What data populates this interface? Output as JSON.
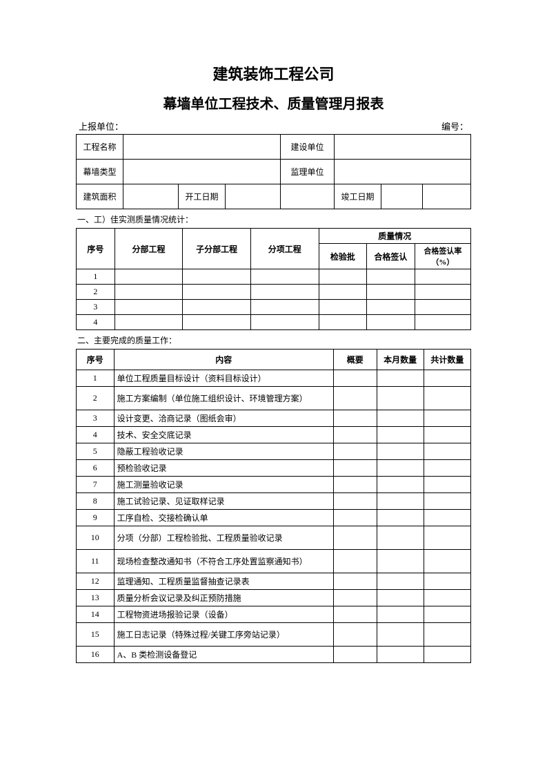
{
  "title_main": "建筑装饰工程公司",
  "title_sub": "幕墙单位工程技术、质量管理月报表",
  "header": {
    "left": "上报单位：",
    "right": "编号："
  },
  "info": {
    "project_name_label": "工程名称",
    "construction_unit_label": "建设单位",
    "curtain_type_label": "幕墙类型",
    "supervision_unit_label": "监理单位",
    "building_area_label": "建筑面积",
    "start_date_label": "开工日期",
    "end_date_label": "竣工日期"
  },
  "section1": {
    "label": "一、工）佳实测质量情况统计：",
    "headers": {
      "seq": "序号",
      "division": "分部工程",
      "subdivision": "子分部工程",
      "item": "分项工程",
      "quality": "质量情况",
      "inspection": "检验批",
      "qualified": "合格签认",
      "qualified_rate": "合格签认率（%）"
    },
    "rows": [
      "1",
      "2",
      "3",
      "4"
    ]
  },
  "section2": {
    "label": "二、主要完成的质量工作：",
    "headers": {
      "seq": "序号",
      "content": "内容",
      "summary": "概要",
      "month_qty": "本月数量",
      "total_qty": "共计数量"
    },
    "rows": [
      {
        "n": "1",
        "c": "单位工程质量目标设计（资料目标设计）",
        "h": "med"
      },
      {
        "n": "2",
        "c": "施工方案编制（单位施工组织设计、环境管理方案）",
        "h": "tall"
      },
      {
        "n": "3",
        "c": "设计变更、洽商记录（图纸会审）",
        "h": "med"
      },
      {
        "n": "4",
        "c": "技术、安全交底记录",
        "h": "short"
      },
      {
        "n": "5",
        "c": "隐蔽工程验收记录",
        "h": "short"
      },
      {
        "n": "6",
        "c": "预检验收记录",
        "h": "short"
      },
      {
        "n": "7",
        "c": "施工测量验收记录",
        "h": "short"
      },
      {
        "n": "8",
        "c": "施工试验记录、见证取样记录",
        "h": "short"
      },
      {
        "n": "9",
        "c": "工序自检、交接检确认单",
        "h": "short"
      },
      {
        "n": "10",
        "c": "分项（分部）工程检验批、工程质量验收记录",
        "h": "tall"
      },
      {
        "n": "11",
        "c": "现场检查整改通知书（不符合工序处置监察通知书）",
        "h": "tall"
      },
      {
        "n": "12",
        "c": "监理通知、工程质量监督抽查记录表",
        "h": "short"
      },
      {
        "n": "13",
        "c": "质量分析会议记录及纠正预防措施",
        "h": "short"
      },
      {
        "n": "14",
        "c": "工程物资进场报验记录（设备）",
        "h": "med"
      },
      {
        "n": "15",
        "c": "施工日志记录（特殊过程/关键工序旁站记录）",
        "h": "tall"
      },
      {
        "n": "16",
        "c": "A、B 类检测设备登记",
        "h": "short"
      }
    ]
  }
}
